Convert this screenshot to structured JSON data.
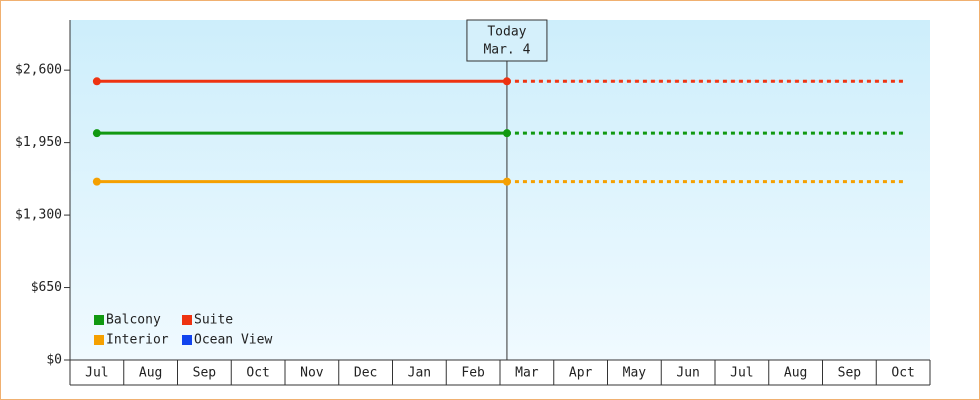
{
  "chart_data": {
    "type": "line",
    "categories": [
      "Jul",
      "Aug",
      "Sep",
      "Oct",
      "Nov",
      "Dec",
      "Jan",
      "Feb",
      "Mar",
      "Apr",
      "May",
      "Jun",
      "Jul",
      "Aug",
      "Sep",
      "Oct"
    ],
    "series": [
      {
        "name": "Balcony",
        "color": "#119911",
        "values": [
          2035,
          2035,
          2035,
          2035,
          2035,
          2035,
          2035,
          2035,
          2035,
          2035,
          2035,
          2035,
          2035,
          2035,
          2035,
          2035
        ]
      },
      {
        "name": "Suite",
        "color": "#ee3311",
        "values": [
          2500,
          2500,
          2500,
          2500,
          2500,
          2500,
          2500,
          2500,
          2500,
          2500,
          2500,
          2500,
          2500,
          2500,
          2500,
          2500
        ]
      },
      {
        "name": "Interior",
        "color": "#f5a000",
        "values": [
          1600,
          1600,
          1600,
          1600,
          1600,
          1600,
          1600,
          1600,
          1600,
          1600,
          1600,
          1600,
          1600,
          1600,
          1600,
          1600
        ]
      },
      {
        "name": "Ocean View",
        "color": "#1144ee",
        "values": [
          null,
          null,
          null,
          null,
          null,
          null,
          null,
          null,
          null,
          null,
          null,
          null,
          null,
          null,
          null,
          null
        ]
      }
    ],
    "ylim": [
      0,
      3050
    ],
    "yticks": [
      {
        "value": 0,
        "label": "$0"
      },
      {
        "value": 650,
        "label": "$650"
      },
      {
        "value": 1300,
        "label": "$1,300"
      },
      {
        "value": 1950,
        "label": "$1,950"
      },
      {
        "value": 2600,
        "label": "$2,600"
      }
    ],
    "marker": {
      "label": "Today",
      "date": "Mar. 4"
    }
  }
}
